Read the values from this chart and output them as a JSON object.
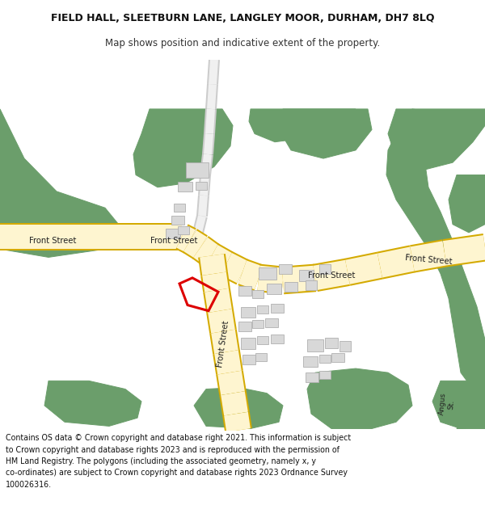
{
  "title_line1": "FIELD HALL, SLEETBURN LANE, LANGLEY MOOR, DURHAM, DH7 8LQ",
  "title_line2": "Map shows position and indicative extent of the property.",
  "footer_text": "Contains OS data © Crown copyright and database right 2021. This information is subject\nto Crown copyright and database rights 2023 and is reproduced with the permission of\nHM Land Registry. The polygons (including the associated geometry, namely x, y\nco-ordinates) are subject to Crown copyright and database rights 2023 Ordnance Survey\n100026316.",
  "bg_color": "#ffffff",
  "green_color": "#6b9e6b",
  "road_fill": "#fef5d0",
  "road_edge": "#d4aa00",
  "grey_road_fill": "#f0f0f0",
  "grey_road_edge": "#cccccc",
  "building_fc": "#d8d8d8",
  "building_ec": "#b0b0b0",
  "red_color": "#dd0000",
  "label_color": "#222222"
}
